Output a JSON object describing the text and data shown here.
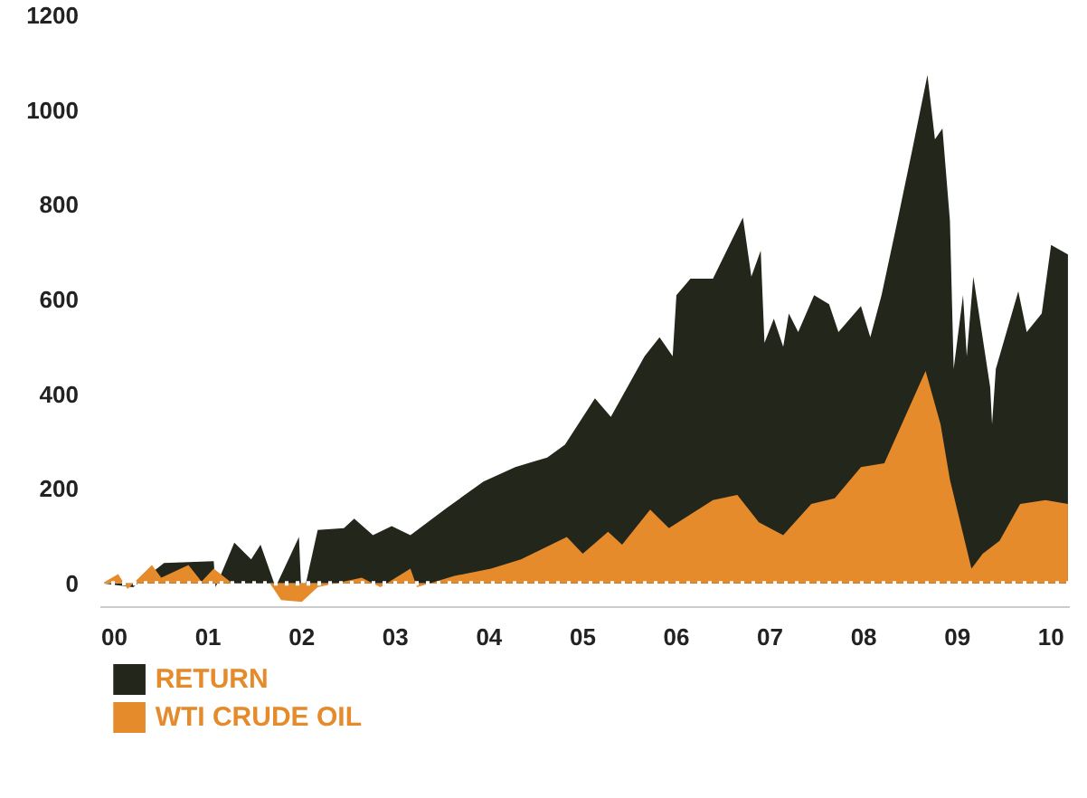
{
  "chart_data": {
    "type": "area",
    "xlim": [
      1999.85,
      2010.2
    ],
    "ylim": [
      -50,
      1200
    ],
    "xticks": [
      {
        "value": 2000,
        "label": "00"
      },
      {
        "value": 2001,
        "label": "01"
      },
      {
        "value": 2002,
        "label": "02"
      },
      {
        "value": 2003,
        "label": "03"
      },
      {
        "value": 2004,
        "label": "04"
      },
      {
        "value": 2005,
        "label": "05"
      },
      {
        "value": 2006,
        "label": "06"
      },
      {
        "value": 2007,
        "label": "07"
      },
      {
        "value": 2008,
        "label": "08"
      },
      {
        "value": 2009,
        "label": "09"
      },
      {
        "value": 2010,
        "label": "10"
      }
    ],
    "yticks": [
      0,
      200,
      400,
      600,
      800,
      1000,
      1200
    ],
    "grid": false,
    "legend": "bottom left",
    "ref_lines": [
      {
        "axis": "y",
        "value": 0,
        "color": "#ffffff",
        "line_style": "dotted"
      }
    ],
    "series": [
      {
        "name": "RETURN",
        "color": "#23261b",
        "x": [
          1999.87,
          2000.2,
          2000.53,
          2001.06,
          2001.08,
          2001.28,
          2001.46,
          2001.56,
          2001.72,
          2001.97,
          2002.0,
          2002.17,
          2002.45,
          2002.56,
          2002.76,
          2002.96,
          2003.16,
          2003.55,
          2003.94,
          2004.28,
          2004.62,
          2004.81,
          2005.13,
          2005.3,
          2005.66,
          2005.82,
          2005.96,
          2006.0,
          2006.15,
          2006.39,
          2006.71,
          2006.8,
          2006.9,
          2006.94,
          2007.04,
          2007.14,
          2007.2,
          2007.3,
          2007.47,
          2007.63,
          2007.73,
          2007.97,
          2008.07,
          2008.19,
          2008.36,
          2008.52,
          2008.68,
          2008.76,
          2008.84,
          2008.92,
          2008.96,
          2009.06,
          2009.1,
          2009.17,
          2009.35,
          2009.37,
          2009.41,
          2009.65,
          2009.74,
          2009.9,
          2010.0,
          2010.18
        ],
        "values": [
          0,
          -8,
          43,
          47,
          -8,
          86,
          51,
          82,
          -8,
          98,
          -39,
          113,
          117,
          137,
          102,
          121,
          102,
          160,
          215,
          246,
          266,
          293,
          391,
          352,
          480,
          520,
          480,
          609,
          644,
          644,
          773,
          648,
          703,
          508,
          559,
          500,
          570,
          531,
          609,
          590,
          531,
          586,
          520,
          609,
          766,
          918,
          1074,
          938,
          961,
          766,
          453,
          609,
          480,
          648,
          414,
          336,
          453,
          617,
          531,
          570,
          715,
          695
        ]
      },
      {
        "name": "WTI CRUDE OIL",
        "color": "#e58b2c",
        "x": [
          1999.87,
          2000.04,
          2000.14,
          2000.4,
          2000.5,
          2000.79,
          2000.93,
          2001.06,
          2001.26,
          2001.66,
          2001.78,
          2002.0,
          2002.17,
          2002.64,
          2002.84,
          2003.16,
          2003.23,
          2003.63,
          2004.02,
          2004.34,
          2004.83,
          2005.0,
          2005.27,
          2005.42,
          2005.72,
          2005.92,
          2006.39,
          2006.65,
          2006.88,
          2007.14,
          2007.44,
          2007.69,
          2007.97,
          2008.22,
          2008.66,
          2008.82,
          2008.92,
          2009.15,
          2009.27,
          2009.45,
          2009.67,
          2009.94,
          2010.18
        ],
        "values": [
          0,
          20,
          -12,
          39,
          12,
          39,
          4,
          31,
          0,
          0,
          -35,
          -39,
          -8,
          12,
          -8,
          31,
          -8,
          16,
          31,
          51,
          98,
          63,
          109,
          82,
          156,
          117,
          176,
          187,
          129,
          102,
          168,
          180,
          246,
          254,
          449,
          336,
          219,
          31,
          63,
          90,
          168,
          176,
          168
        ]
      }
    ]
  }
}
